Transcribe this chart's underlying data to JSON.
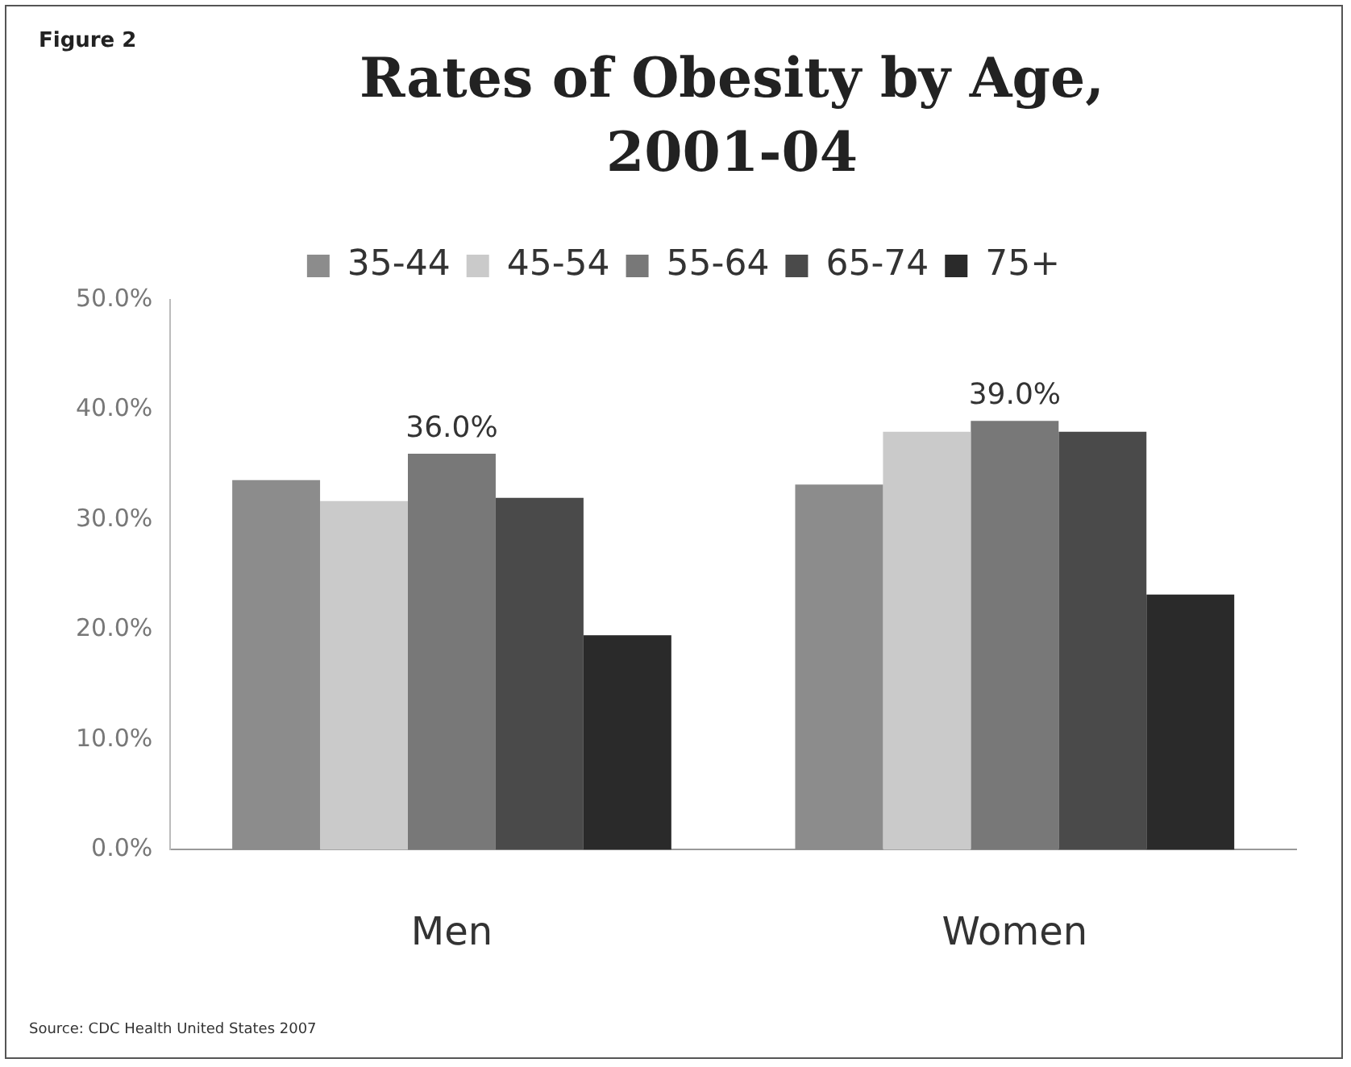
{
  "chart_data": {
    "type": "bar",
    "title": "Rates of Obesity by Age, 2001-04",
    "categories": [
      "Men",
      "Women"
    ],
    "series": [
      {
        "name": "35-44",
        "color": "#8c8c8c",
        "values": [
          33.6,
          33.2
        ]
      },
      {
        "name": "45-54",
        "color": "#cacaca",
        "values": [
          31.7,
          38.0
        ]
      },
      {
        "name": "55-64",
        "color": "#787878",
        "values": [
          36.0,
          39.0
        ],
        "value_labels": [
          "36.0%",
          "39.0%"
        ]
      },
      {
        "name": "65-74",
        "color": "#4a4a4a",
        "values": [
          32.0,
          38.0
        ]
      },
      {
        "name": "75+",
        "color": "#2a2a2a",
        "values": [
          19.5,
          23.2
        ]
      }
    ],
    "ylim": [
      0,
      50
    ],
    "yticks": [
      {
        "value": 0,
        "label": "0.0%"
      },
      {
        "value": 10,
        "label": "10.0%"
      },
      {
        "value": 20,
        "label": "20.0%"
      },
      {
        "value": 30,
        "label": "30.0%"
      },
      {
        "value": 40,
        "label": "40.0%"
      },
      {
        "value": 50,
        "label": "50.0%"
      }
    ],
    "grid": false,
    "legend": "top",
    "annotations": [
      "Figure 2",
      "Source: CDC Health United States 2007"
    ]
  }
}
